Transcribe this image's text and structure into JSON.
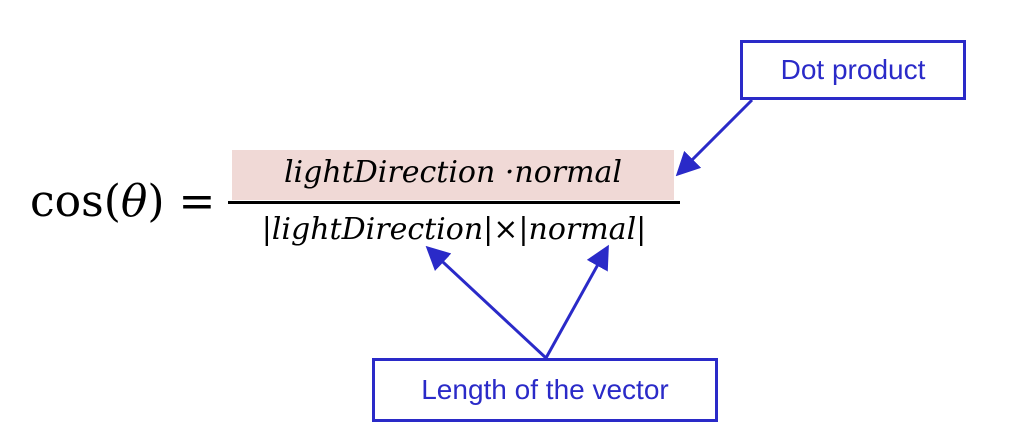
{
  "formula": {
    "lhs_func": "cos",
    "lhs_open": "(",
    "lhs_var": "θ",
    "lhs_close": ")",
    "equals": " =",
    "numerator": "lightDirection ·normal",
    "denominator": "|lightDirection|×|normal|"
  },
  "annotations": {
    "dot_product": "Dot product",
    "vector_length": "Length of the vector"
  },
  "colors": {
    "annotation": "#2a2ac8",
    "numerator_highlight": "#f0d9d6"
  }
}
